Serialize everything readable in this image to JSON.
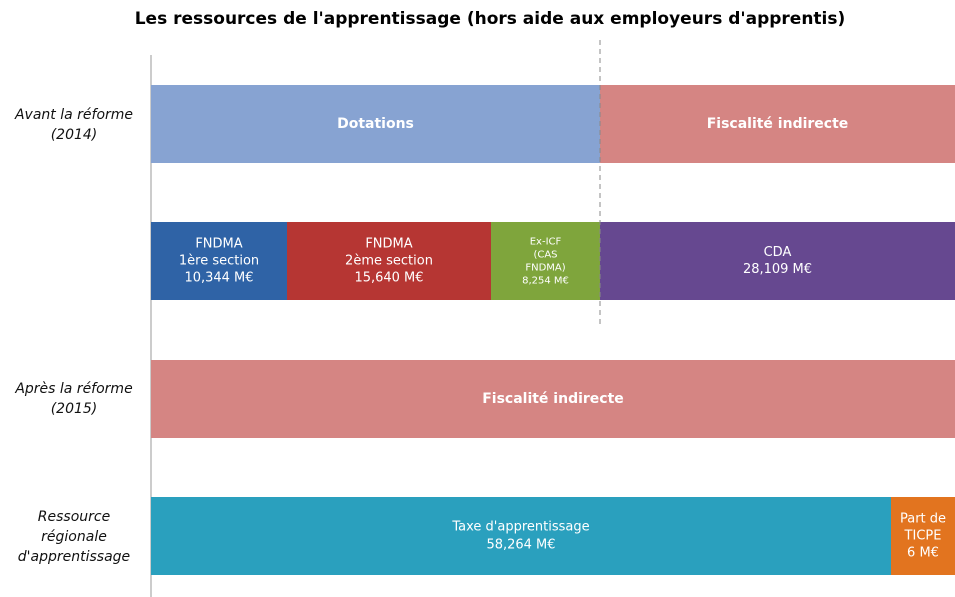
{
  "title": "Les ressources de l'apprentissage (hors aide aux employeurs d'apprentis)",
  "rows": [
    {
      "label": [
        "Avant la réforme",
        "(2014)"
      ]
    },
    {
      "label": [
        "Après la réforme",
        "(2015)"
      ]
    },
    {
      "label": [
        "Ressource",
        "régionale",
        "d'apprentissage"
      ]
    }
  ],
  "segments": [
    {
      "lines": [
        "Dotations"
      ]
    },
    {
      "lines": [
        "Fiscalité indirecte"
      ]
    },
    {
      "lines": [
        "FNDMA",
        "1ère section",
        "10,344 M€"
      ]
    },
    {
      "lines": [
        "FNDMA",
        "2ème section",
        "15,640 M€"
      ]
    },
    {
      "lines": [
        "Ex-ICF",
        "(CAS",
        "FNDMA)",
        "8,254 M€"
      ]
    },
    {
      "lines": [
        "CDA",
        "28,109 M€"
      ]
    },
    {
      "lines": [
        "Fiscalité indirecte"
      ]
    },
    {
      "lines": [
        "Taxe d'apprentissage",
        "58,264 M€"
      ]
    },
    {
      "lines": [
        "Part de",
        "TICPE",
        "6 M€"
      ]
    }
  ]
}
